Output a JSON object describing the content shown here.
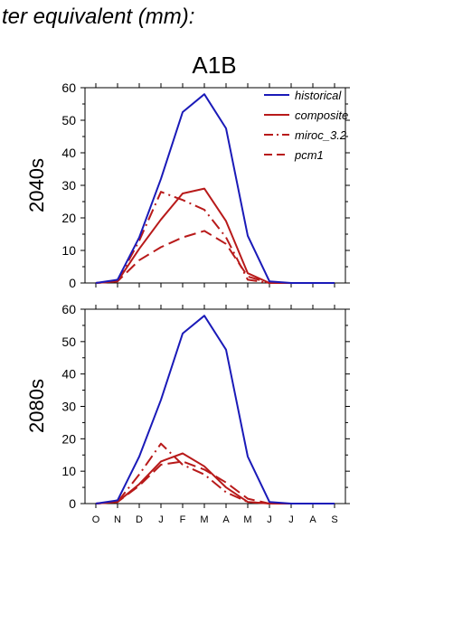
{
  "header_text": "ter equivalent (mm):",
  "chart_data": [
    {
      "type": "line",
      "title": "A1B",
      "ylabel": "2040s",
      "xlabel": "",
      "categories": [
        "O",
        "N",
        "D",
        "J",
        "F",
        "M",
        "A",
        "M",
        "J",
        "J",
        "A",
        "S"
      ],
      "ylim": [
        0,
        60
      ],
      "yticks": [
        0,
        10,
        20,
        30,
        40,
        50,
        60
      ],
      "grid": false,
      "legend_position": "top-right",
      "series": [
        {
          "name": "historical",
          "color": "#1a1ab8",
          "dash": "solid",
          "values": [
            0,
            1,
            14,
            32,
            52.5,
            58,
            47.5,
            14.5,
            0.5,
            0,
            0,
            0
          ]
        },
        {
          "name": "composite",
          "color": "#b81a1a",
          "dash": "solid",
          "values": [
            0,
            0.5,
            10.5,
            19.5,
            27.5,
            29,
            19,
            3,
            0,
            0,
            0,
            0
          ]
        },
        {
          "name": "miroc_3.2",
          "color": "#b81a1a",
          "dash": "dashdot",
          "values": [
            0,
            0.5,
            13,
            28,
            25.5,
            22.5,
            14,
            1,
            0,
            0,
            0,
            0
          ]
        },
        {
          "name": "pcm1",
          "color": "#b81a1a",
          "dash": "dash",
          "values": [
            0,
            0.5,
            7,
            11,
            14,
            16,
            12,
            2,
            0,
            0,
            0,
            0
          ]
        }
      ]
    },
    {
      "type": "line",
      "title": "",
      "ylabel": "2080s",
      "xlabel": "",
      "categories": [
        "O",
        "N",
        "D",
        "J",
        "F",
        "M",
        "A",
        "M",
        "J",
        "J",
        "A",
        "S"
      ],
      "ylim": [
        0,
        60
      ],
      "yticks": [
        0,
        10,
        20,
        30,
        40,
        50,
        60
      ],
      "grid": false,
      "series": [
        {
          "name": "historical",
          "color": "#1a1ab8",
          "dash": "solid",
          "values": [
            0,
            1,
            14.5,
            32,
            52.5,
            58,
            47.5,
            14.5,
            0.5,
            0,
            0,
            0
          ]
        },
        {
          "name": "composite",
          "color": "#b81a1a",
          "dash": "solid",
          "values": [
            0,
            0.5,
            6,
            13,
            15.5,
            11.5,
            5,
            0.5,
            0,
            0,
            0,
            0
          ]
        },
        {
          "name": "miroc_3.2",
          "color": "#b81a1a",
          "dash": "dashdot",
          "values": [
            0,
            0.5,
            9,
            18.5,
            12,
            9,
            3.5,
            0.5,
            0,
            0,
            0,
            0
          ]
        },
        {
          "name": "pcm1",
          "color": "#b81a1a",
          "dash": "dash",
          "values": [
            0,
            0.5,
            5.5,
            12,
            13,
            10.5,
            6.5,
            1.5,
            0,
            0,
            0,
            0
          ]
        }
      ]
    }
  ]
}
